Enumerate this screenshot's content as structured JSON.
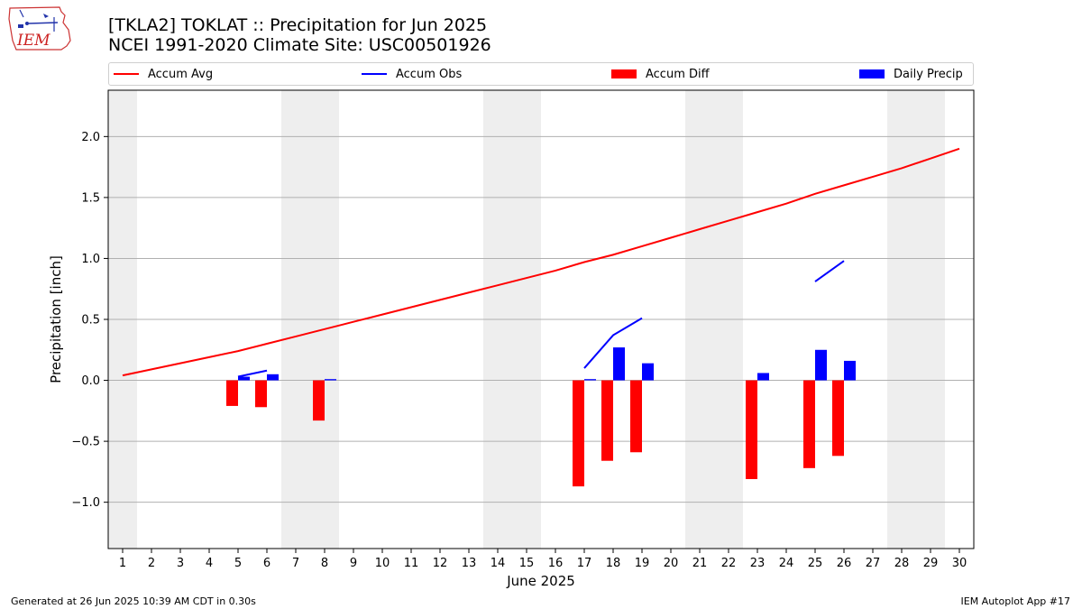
{
  "logo": {
    "text": "IEM"
  },
  "header": {
    "title": "[TKLA2] TOKLAT :: Precipitation for Jun 2025",
    "subtitle": "NCEI 1991-2020 Climate Site: USC00501926"
  },
  "legend": {
    "placement": "top",
    "items": [
      {
        "label": "Accum Avg",
        "kind": "line",
        "color": "#ff0000"
      },
      {
        "label": "Accum Obs",
        "kind": "line",
        "color": "#0000ff"
      },
      {
        "label": "Accum Diff",
        "kind": "bar",
        "color": "#ff0000"
      },
      {
        "label": "Daily Precip",
        "kind": "bar",
        "color": "#0000ff"
      }
    ]
  },
  "chart_data": {
    "type": "bar",
    "xlabel": "June 2025",
    "ylabel": "Precipitation [inch]",
    "xlim": [
      0.5,
      30.5
    ],
    "ylim": [
      -1.38,
      2.38
    ],
    "xticks": [
      1,
      2,
      3,
      4,
      5,
      6,
      7,
      8,
      9,
      10,
      11,
      12,
      13,
      14,
      15,
      16,
      17,
      18,
      19,
      20,
      21,
      22,
      23,
      24,
      25,
      26,
      27,
      28,
      29,
      30
    ],
    "yticks": [
      -1.0,
      -0.5,
      0.0,
      0.5,
      1.0,
      1.5,
      2.0
    ],
    "ytick_labels": [
      "−1.0",
      "−0.5",
      "0.0",
      "0.5",
      "1.0",
      "1.5",
      "2.0"
    ],
    "grid": "horizontal",
    "weekend_shading": [
      [
        0.5,
        1.5
      ],
      [
        6.5,
        8.5
      ],
      [
        13.5,
        15.5
      ],
      [
        20.5,
        22.5
      ],
      [
        27.5,
        29.5
      ]
    ],
    "colors": {
      "avg": "#ff0000",
      "obs": "#0000ff",
      "diff": "#ff0000",
      "daily": "#0000ff",
      "shade": "#eeeeee",
      "grid": "#b0b0b0"
    },
    "accum_avg": {
      "name": "Accum Avg",
      "x": [
        1,
        2,
        3,
        4,
        5,
        6,
        7,
        8,
        9,
        10,
        11,
        12,
        13,
        14,
        15,
        16,
        17,
        18,
        19,
        20,
        21,
        22,
        23,
        24,
        25,
        26,
        27,
        28,
        29,
        30
      ],
      "y": [
        0.04,
        0.09,
        0.14,
        0.19,
        0.24,
        0.3,
        0.36,
        0.42,
        0.48,
        0.54,
        0.6,
        0.66,
        0.72,
        0.78,
        0.84,
        0.9,
        0.97,
        1.03,
        1.1,
        1.17,
        1.24,
        1.31,
        1.38,
        1.45,
        1.53,
        1.6,
        1.67,
        1.74,
        1.82,
        1.9
      ]
    },
    "accum_obs": {
      "name": "Accum Obs",
      "segments": [
        {
          "x": [
            5,
            6
          ],
          "y": [
            0.03,
            0.08
          ]
        },
        {
          "x": [
            17,
            18,
            19
          ],
          "y": [
            0.1,
            0.37,
            0.51
          ]
        },
        {
          "x": [
            25,
            26
          ],
          "y": [
            0.81,
            0.98
          ]
        }
      ]
    },
    "accum_diff": {
      "name": "Accum Diff",
      "x": [
        5,
        6,
        8,
        17,
        18,
        19,
        23,
        25,
        26
      ],
      "y": [
        -0.21,
        -0.22,
        -0.33,
        -0.87,
        -0.66,
        -0.59,
        -0.81,
        -0.72,
        -0.62
      ]
    },
    "daily_precip": {
      "name": "Daily Precip",
      "x": [
        5,
        6,
        8,
        17,
        18,
        19,
        23,
        25,
        26
      ],
      "y": [
        0.03,
        0.05,
        0.01,
        0.01,
        0.27,
        0.14,
        0.06,
        0.25,
        0.16
      ]
    }
  },
  "footer": {
    "left": "Generated at 26 Jun 2025 10:39 AM CDT in 0.30s",
    "right": "IEM Autoplot App #17"
  }
}
